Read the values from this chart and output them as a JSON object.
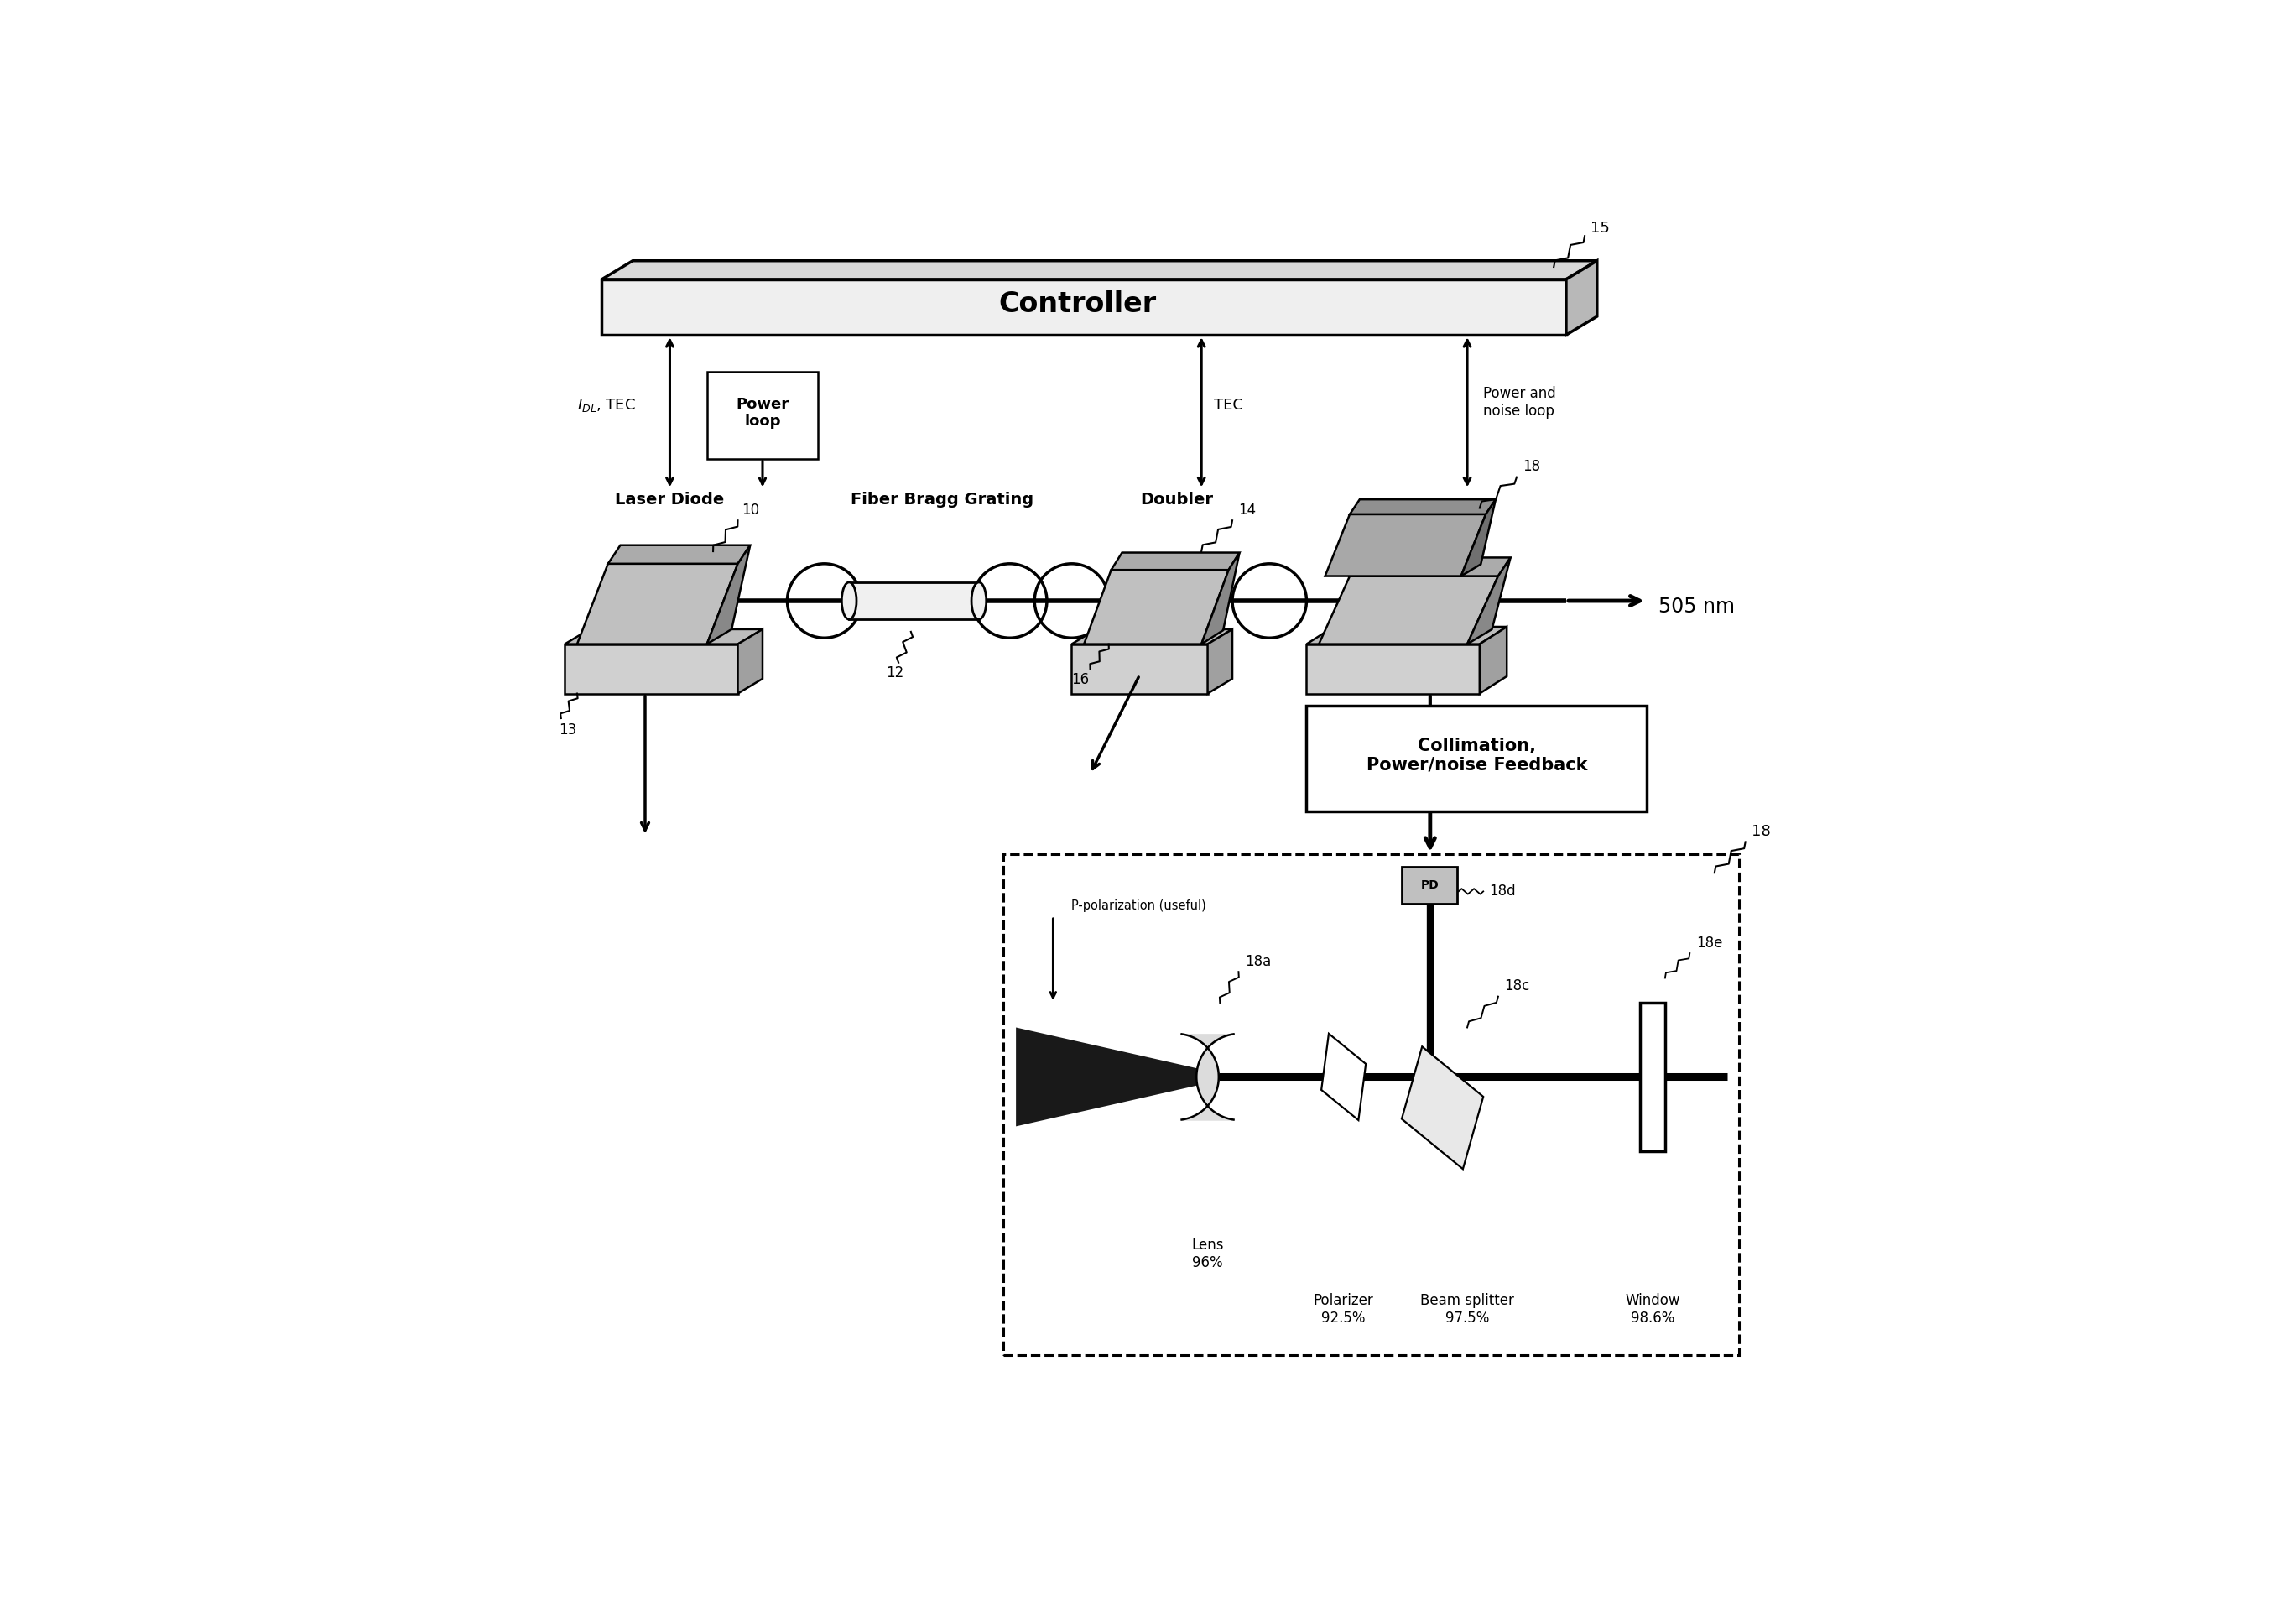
{
  "bg_color": "#ffffff",
  "fig_width": 27.37,
  "fig_height": 19.14,
  "controller_label": "Controller",
  "controller_ref": "15",
  "laser_diode_label": "Laser Diode",
  "laser_diode_ref": "10",
  "laser_diode_base_ref": "13",
  "fbg_label": "Fiber Bragg Grating",
  "fbg_ref": "12",
  "doubler_label": "Doubler",
  "doubler_ref": "14",
  "doubler_ref2": "16",
  "collimation_ref": "18",
  "collimation_label": "Collimation,\nPower/noise Feedback",
  "wavelength_label": "505 nm",
  "idl_tec_label": "$I_{DL}$, TEC",
  "power_loop_label": "Power\nloop",
  "tec_label": "TEC",
  "power_noise_label": "Power and\nnoise loop",
  "p_polarization_label": "P-polarization (useful)",
  "lens_label": "Lens\n96%",
  "lens_ref": "18a",
  "polarizer_label": "Polarizer\n92.5%",
  "beamsplitter_label": "Beam splitter\n97.5%",
  "beamsplitter_ref": "18c",
  "pd_label": "PD",
  "pd_ref": "18d",
  "window_label": "Window\n98.6%",
  "window_ref": "18e",
  "dashed_box_ref": "18",
  "gray_face": "#c8c8c8",
  "gray_top": "#b0b0b0",
  "gray_side": "#888888",
  "gray_dark_face": "#a8a8a8",
  "gray_dark_top": "#909090",
  "gray_dark_side": "#686868"
}
